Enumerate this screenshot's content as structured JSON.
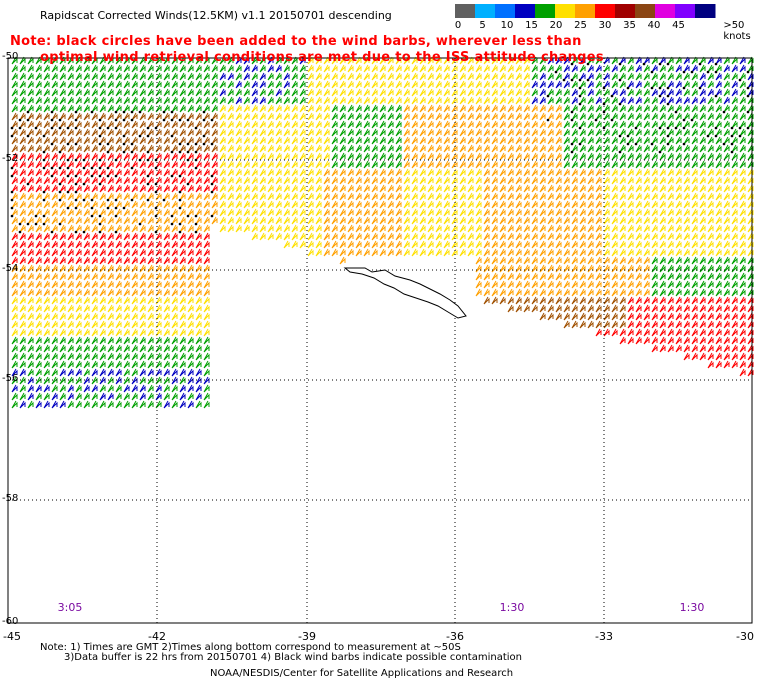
{
  "header": {
    "title": "Rapidscat Corrected Winds(12.5KM) v1.1 20150701 descending",
    "note_line1": "Note: black circles have been added to the wind barbs, wherever less than",
    "note_line2": "optimal wind retrieval conditions are met due to the ISS attitude changes"
  },
  "legend": {
    "labels": [
      "0",
      "5",
      "10",
      "15",
      "20",
      "25",
      "30",
      "35",
      "40",
      "45",
      ">50 knots"
    ],
    "colors": [
      "#606060",
      "#00b0ff",
      "#0070ff",
      "#0000c0",
      "#00a000",
      "#ffe000",
      "#ffa000",
      "#ff0000",
      "#a00000",
      "#8b4513",
      "#e000e0",
      "#8000ff",
      "#000080"
    ]
  },
  "map": {
    "lat_labels": [
      "-50",
      "-52",
      "-54",
      "-56",
      "-58",
      "-60"
    ],
    "lon_labels": [
      "-45",
      "-42",
      "-39",
      "-36",
      "-33",
      "-30"
    ],
    "pass_times": [
      "3:05",
      "1:30",
      "1:30"
    ],
    "barb_colors": {
      "calm": "#606060",
      "green": "#00a000",
      "blue": "#0000c0",
      "yellow": "#ffe000",
      "orange": "#ffa000",
      "red": "#ff0000",
      "brown": "#a05000"
    }
  },
  "footer": {
    "note_line1": "Note: 1) Times are GMT 2)Times along bottom correspond to measurement at ~50S",
    "note_line2": "3)Data buffer is 22 hrs from 20150701 4) Black wind barbs indicate possible contamination",
    "credit": "NOAA/NESDIS/Center for Satellite Applications and Research"
  }
}
